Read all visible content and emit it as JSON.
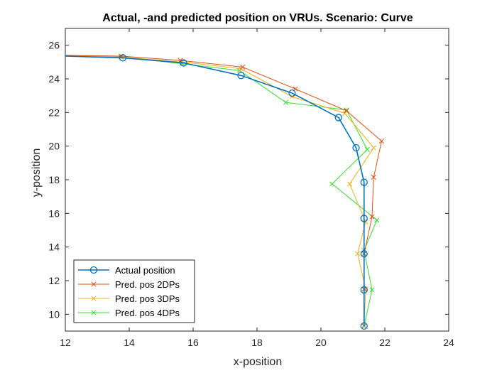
{
  "chart_data": {
    "type": "line",
    "title": "Actual, -and predicted position on VRUs. Scenario: Curve",
    "xlabel": "x-position",
    "ylabel": "y-position",
    "xlim": [
      12,
      24
    ],
    "ylim": [
      9,
      27
    ],
    "xticks": [
      12,
      14,
      16,
      18,
      20,
      22,
      24
    ],
    "yticks": [
      10,
      12,
      14,
      16,
      18,
      20,
      22,
      24,
      26
    ],
    "grid": false,
    "legend_position": "bottom-left",
    "series": [
      {
        "name": "Actual position",
        "color": "#0072BD",
        "marker": "circle",
        "line_width": 1.6,
        "points": [
          [
            12.0,
            25.35
          ],
          [
            13.8,
            25.25
          ],
          [
            15.7,
            24.95
          ],
          [
            17.5,
            24.2
          ],
          [
            19.1,
            23.15
          ],
          [
            20.55,
            21.7
          ],
          [
            21.1,
            19.9
          ],
          [
            21.35,
            17.85
          ],
          [
            21.35,
            15.7
          ],
          [
            21.35,
            13.6
          ],
          [
            21.35,
            11.45
          ],
          [
            21.35,
            9.3
          ]
        ],
        "marker_points": [
          [
            13.8,
            25.25
          ],
          [
            15.7,
            24.95
          ],
          [
            17.5,
            24.2
          ],
          [
            19.1,
            23.15
          ],
          [
            20.55,
            21.7
          ],
          [
            21.1,
            19.9
          ],
          [
            21.35,
            17.85
          ],
          [
            21.35,
            15.7
          ],
          [
            21.35,
            13.6
          ],
          [
            21.35,
            11.45
          ],
          [
            21.35,
            9.3
          ]
        ]
      },
      {
        "name": "Pred. pos 2DPs",
        "color": "#D95319",
        "marker": "x",
        "line_width": 1,
        "points": [
          [
            12.0,
            25.4
          ],
          [
            13.75,
            25.35
          ],
          [
            15.6,
            25.1
          ],
          [
            17.55,
            24.7
          ],
          [
            19.2,
            23.4
          ],
          [
            20.8,
            22.1
          ],
          [
            21.9,
            20.3
          ],
          [
            21.65,
            18.15
          ],
          [
            21.6,
            15.8
          ],
          [
            21.35,
            13.6
          ],
          [
            21.35,
            11.5
          ],
          [
            21.35,
            9.3
          ]
        ],
        "marker_points": [
          [
            13.75,
            25.35
          ],
          [
            15.6,
            25.1
          ],
          [
            17.55,
            24.7
          ],
          [
            19.2,
            23.4
          ],
          [
            20.8,
            22.1
          ],
          [
            21.9,
            20.3
          ],
          [
            21.65,
            18.15
          ],
          [
            21.6,
            15.8
          ],
          [
            21.35,
            13.6
          ],
          [
            21.35,
            11.5
          ],
          [
            21.35,
            9.3
          ]
        ]
      },
      {
        "name": "Pred. pos 3DPs",
        "color": "#EDB120",
        "marker": "x",
        "line_width": 1,
        "points": [
          [
            12.0,
            25.4
          ],
          [
            13.75,
            25.3
          ],
          [
            15.65,
            25.0
          ],
          [
            17.5,
            24.6
          ],
          [
            19.1,
            22.95
          ],
          [
            20.75,
            21.95
          ],
          [
            21.65,
            19.9
          ],
          [
            20.9,
            17.75
          ],
          [
            21.4,
            15.5
          ],
          [
            21.15,
            13.6
          ],
          [
            21.4,
            11.5
          ],
          [
            21.35,
            9.3
          ]
        ],
        "marker_points": [
          [
            13.75,
            25.3
          ],
          [
            15.65,
            25.0
          ],
          [
            17.5,
            24.6
          ],
          [
            19.1,
            22.95
          ],
          [
            20.75,
            21.95
          ],
          [
            21.65,
            19.9
          ],
          [
            20.9,
            17.75
          ],
          [
            21.4,
            15.5
          ],
          [
            21.15,
            13.6
          ],
          [
            21.4,
            11.5
          ],
          [
            21.35,
            9.3
          ]
        ]
      },
      {
        "name": "Pred. pos 4DPs",
        "color": "#33DD33",
        "marker": "x",
        "line_width": 1,
        "points": [
          [
            12.0,
            25.4
          ],
          [
            13.75,
            25.3
          ],
          [
            15.65,
            24.9
          ],
          [
            17.45,
            24.5
          ],
          [
            18.9,
            22.6
          ],
          [
            20.8,
            22.15
          ],
          [
            21.45,
            19.8
          ],
          [
            20.35,
            17.75
          ],
          [
            21.75,
            15.6
          ],
          [
            21.35,
            13.8
          ],
          [
            21.6,
            11.45
          ],
          [
            21.35,
            9.3
          ]
        ],
        "marker_points": [
          [
            13.75,
            25.3
          ],
          [
            15.65,
            24.9
          ],
          [
            17.45,
            24.5
          ],
          [
            18.9,
            22.6
          ],
          [
            20.8,
            22.15
          ],
          [
            21.45,
            19.8
          ],
          [
            20.35,
            17.75
          ],
          [
            21.75,
            15.6
          ],
          [
            21.35,
            13.8
          ],
          [
            21.6,
            11.45
          ],
          [
            21.35,
            9.3
          ]
        ]
      }
    ]
  }
}
